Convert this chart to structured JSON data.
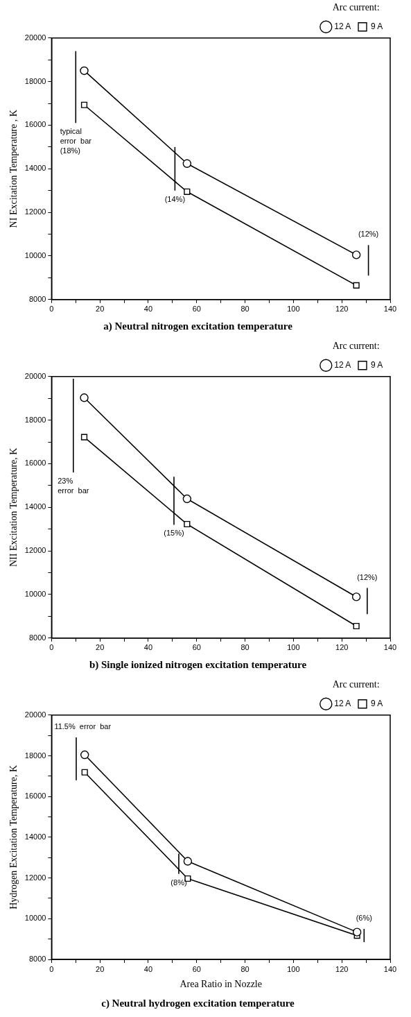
{
  "chart_data": [
    {
      "type": "line",
      "title": "a) Neutral nitrogen excitation temperature",
      "ylabel": "NI Excitation Temperature , K",
      "legend_title": "Arc current:",
      "legend": "top right",
      "grid": false,
      "xlim": [
        0,
        140
      ],
      "xticks": [
        0,
        {
          "value": 10,
          "label": null
        },
        20,
        {
          "value": 30,
          "label": null
        },
        40,
        {
          "value": 50,
          "label": null
        },
        60,
        {
          "value": 70,
          "label": null
        },
        80,
        {
          "value": 90,
          "label": null
        },
        100,
        {
          "value": 110,
          "label": null
        },
        120,
        {
          "value": 130,
          "label": null
        },
        140
      ],
      "ylim": [
        8000,
        20000
      ],
      "yticks": [
        8000,
        {
          "value": 9000,
          "label": null
        },
        10000,
        {
          "value": 11000,
          "label": null
        },
        12000,
        {
          "value": 13000,
          "label": null
        },
        14000,
        {
          "value": 15000,
          "label": null
        },
        16000,
        {
          "value": 17000,
          "label": null
        },
        18000,
        {
          "value": 19000,
          "label": null
        },
        20000
      ],
      "series": [
        {
          "name": "12 A",
          "color": "#000000",
          "marker": "circle",
          "x": [
            13.5,
            56,
            126
          ],
          "values": [
            18500,
            14240,
            10050
          ]
        },
        {
          "name": "9 A",
          "color": "#000000",
          "marker": "square",
          "x": [
            13.5,
            56,
            126
          ],
          "values": [
            16930,
            12950,
            8650
          ]
        },
        {
          "color": "#000000",
          "marker": "none",
          "x": [
            10,
            10
          ],
          "values": [
            16100,
            19400
          ]
        },
        {
          "color": "#000000",
          "marker": "none",
          "x": [
            51,
            51
          ],
          "values": [
            13000,
            15000
          ]
        },
        {
          "color": "#000000",
          "marker": "none",
          "x": [
            131,
            131
          ],
          "values": [
            9100,
            10500
          ]
        }
      ],
      "annotations": [
        {
          "text": "typical\nerror  bar\n(18%)",
          "x": 10,
          "y": 16100
        },
        {
          "text": "(14%)",
          "x": 51,
          "y": 13000
        },
        {
          "text": "(12%)",
          "x": 131,
          "y": 10500
        }
      ]
    },
    {
      "type": "line",
      "title": "b) Single ionized nitrogen excitation temperature",
      "ylabel": "NII Excitation Temperature, K",
      "legend_title": "Arc current:",
      "legend": "top right",
      "grid": false,
      "xlim": [
        0,
        140
      ],
      "xticks": [
        0,
        {
          "value": 10,
          "label": null
        },
        20,
        {
          "value": 30,
          "label": null
        },
        40,
        {
          "value": 50,
          "label": null
        },
        60,
        {
          "value": 70,
          "label": null
        },
        80,
        {
          "value": 90,
          "label": null
        },
        100,
        {
          "value": 110,
          "label": null
        },
        120,
        {
          "value": 130,
          "label": null
        },
        140
      ],
      "ylim": [
        8000,
        20000
      ],
      "yticks": [
        8000,
        {
          "value": 9000,
          "label": null
        },
        10000,
        {
          "value": 11000,
          "label": null
        },
        12000,
        {
          "value": 13000,
          "label": null
        },
        14000,
        {
          "value": 15000,
          "label": null
        },
        16000,
        {
          "value": 17000,
          "label": null
        },
        18000,
        {
          "value": 19000,
          "label": null
        },
        20000
      ],
      "series": [
        {
          "name": "12 A",
          "color": "#000000",
          "marker": "circle",
          "x": [
            13.5,
            56,
            126
          ],
          "values": [
            19030,
            14390,
            9890
          ]
        },
        {
          "name": "9 A",
          "color": "#000000",
          "marker": "square",
          "x": [
            13.5,
            56,
            126
          ],
          "values": [
            17220,
            13230,
            8550
          ]
        },
        {
          "color": "#000000",
          "marker": "none",
          "x": [
            9,
            9
          ],
          "values": [
            15600,
            19900
          ]
        },
        {
          "color": "#000000",
          "marker": "none",
          "x": [
            50.6,
            50.6
          ],
          "values": [
            13200,
            15400
          ]
        },
        {
          "color": "#000000",
          "marker": "none",
          "x": [
            130.5,
            130.5
          ],
          "values": [
            9100,
            10300
          ]
        }
      ],
      "annotations": [
        {
          "text": "23%\nerror  bar",
          "x": 9,
          "y": 15600
        },
        {
          "text": "(15%)",
          "x": 50.6,
          "y": 13200
        },
        {
          "text": "(12%)",
          "x": 130.5,
          "y": 10300
        }
      ]
    },
    {
      "type": "line",
      "title": "c) Neutral hydrogen excitation temperature",
      "xlabel": "Area Ratio in Nozzle",
      "ylabel": "Hydrogen Excitation Temperature, K",
      "legend_title": "Arc current:",
      "legend": "top right",
      "grid": false,
      "xlim": [
        0,
        140
      ],
      "xticks": [
        0,
        {
          "value": 10,
          "label": null
        },
        20,
        {
          "value": 30,
          "label": null
        },
        40,
        {
          "value": 50,
          "label": null
        },
        60,
        {
          "value": 70,
          "label": null
        },
        80,
        {
          "value": 90,
          "label": null
        },
        100,
        {
          "value": 110,
          "label": null
        },
        120,
        {
          "value": 130,
          "label": null
        },
        140
      ],
      "ylim": [
        8000,
        20000
      ],
      "yticks": [
        8000,
        {
          "value": 9000,
          "label": null
        },
        10000,
        {
          "value": 11000,
          "label": null
        },
        12000,
        {
          "value": 13000,
          "label": null
        },
        14000,
        {
          "value": 15000,
          "label": null
        },
        16000,
        {
          "value": 17000,
          "label": null
        },
        18000,
        {
          "value": 19000,
          "label": null
        },
        20000
      ],
      "series": [
        {
          "name": "12 A",
          "color": "#000000",
          "marker": "circle",
          "x": [
            13.7,
            56.3,
            126.3
          ],
          "values": [
            18050,
            12820,
            9340
          ]
        },
        {
          "name": "9 A",
          "color": "#000000",
          "marker": "square",
          "x": [
            13.7,
            56.3,
            126.3
          ],
          "values": [
            17190,
            11970,
            9170
          ]
        },
        {
          "color": "#000000",
          "marker": "none",
          "x": [
            10.2,
            10.2
          ],
          "values": [
            16800,
            18900
          ]
        },
        {
          "color": "#000000",
          "marker": "none",
          "x": [
            52.6,
            52.6
          ],
          "values": [
            12200,
            13200
          ]
        },
        {
          "color": "#000000",
          "marker": "none",
          "x": [
            129.2,
            129.2
          ],
          "values": [
            8850,
            9500
          ]
        }
      ],
      "annotations": [
        {
          "text": "11.5%  error  bar",
          "x": 10.2,
          "y": 18900
        },
        {
          "text": "(8%)",
          "x": 52.6,
          "y": 12200
        },
        {
          "text": "(6%)",
          "x": 129.2,
          "y": 9500
        }
      ]
    }
  ]
}
